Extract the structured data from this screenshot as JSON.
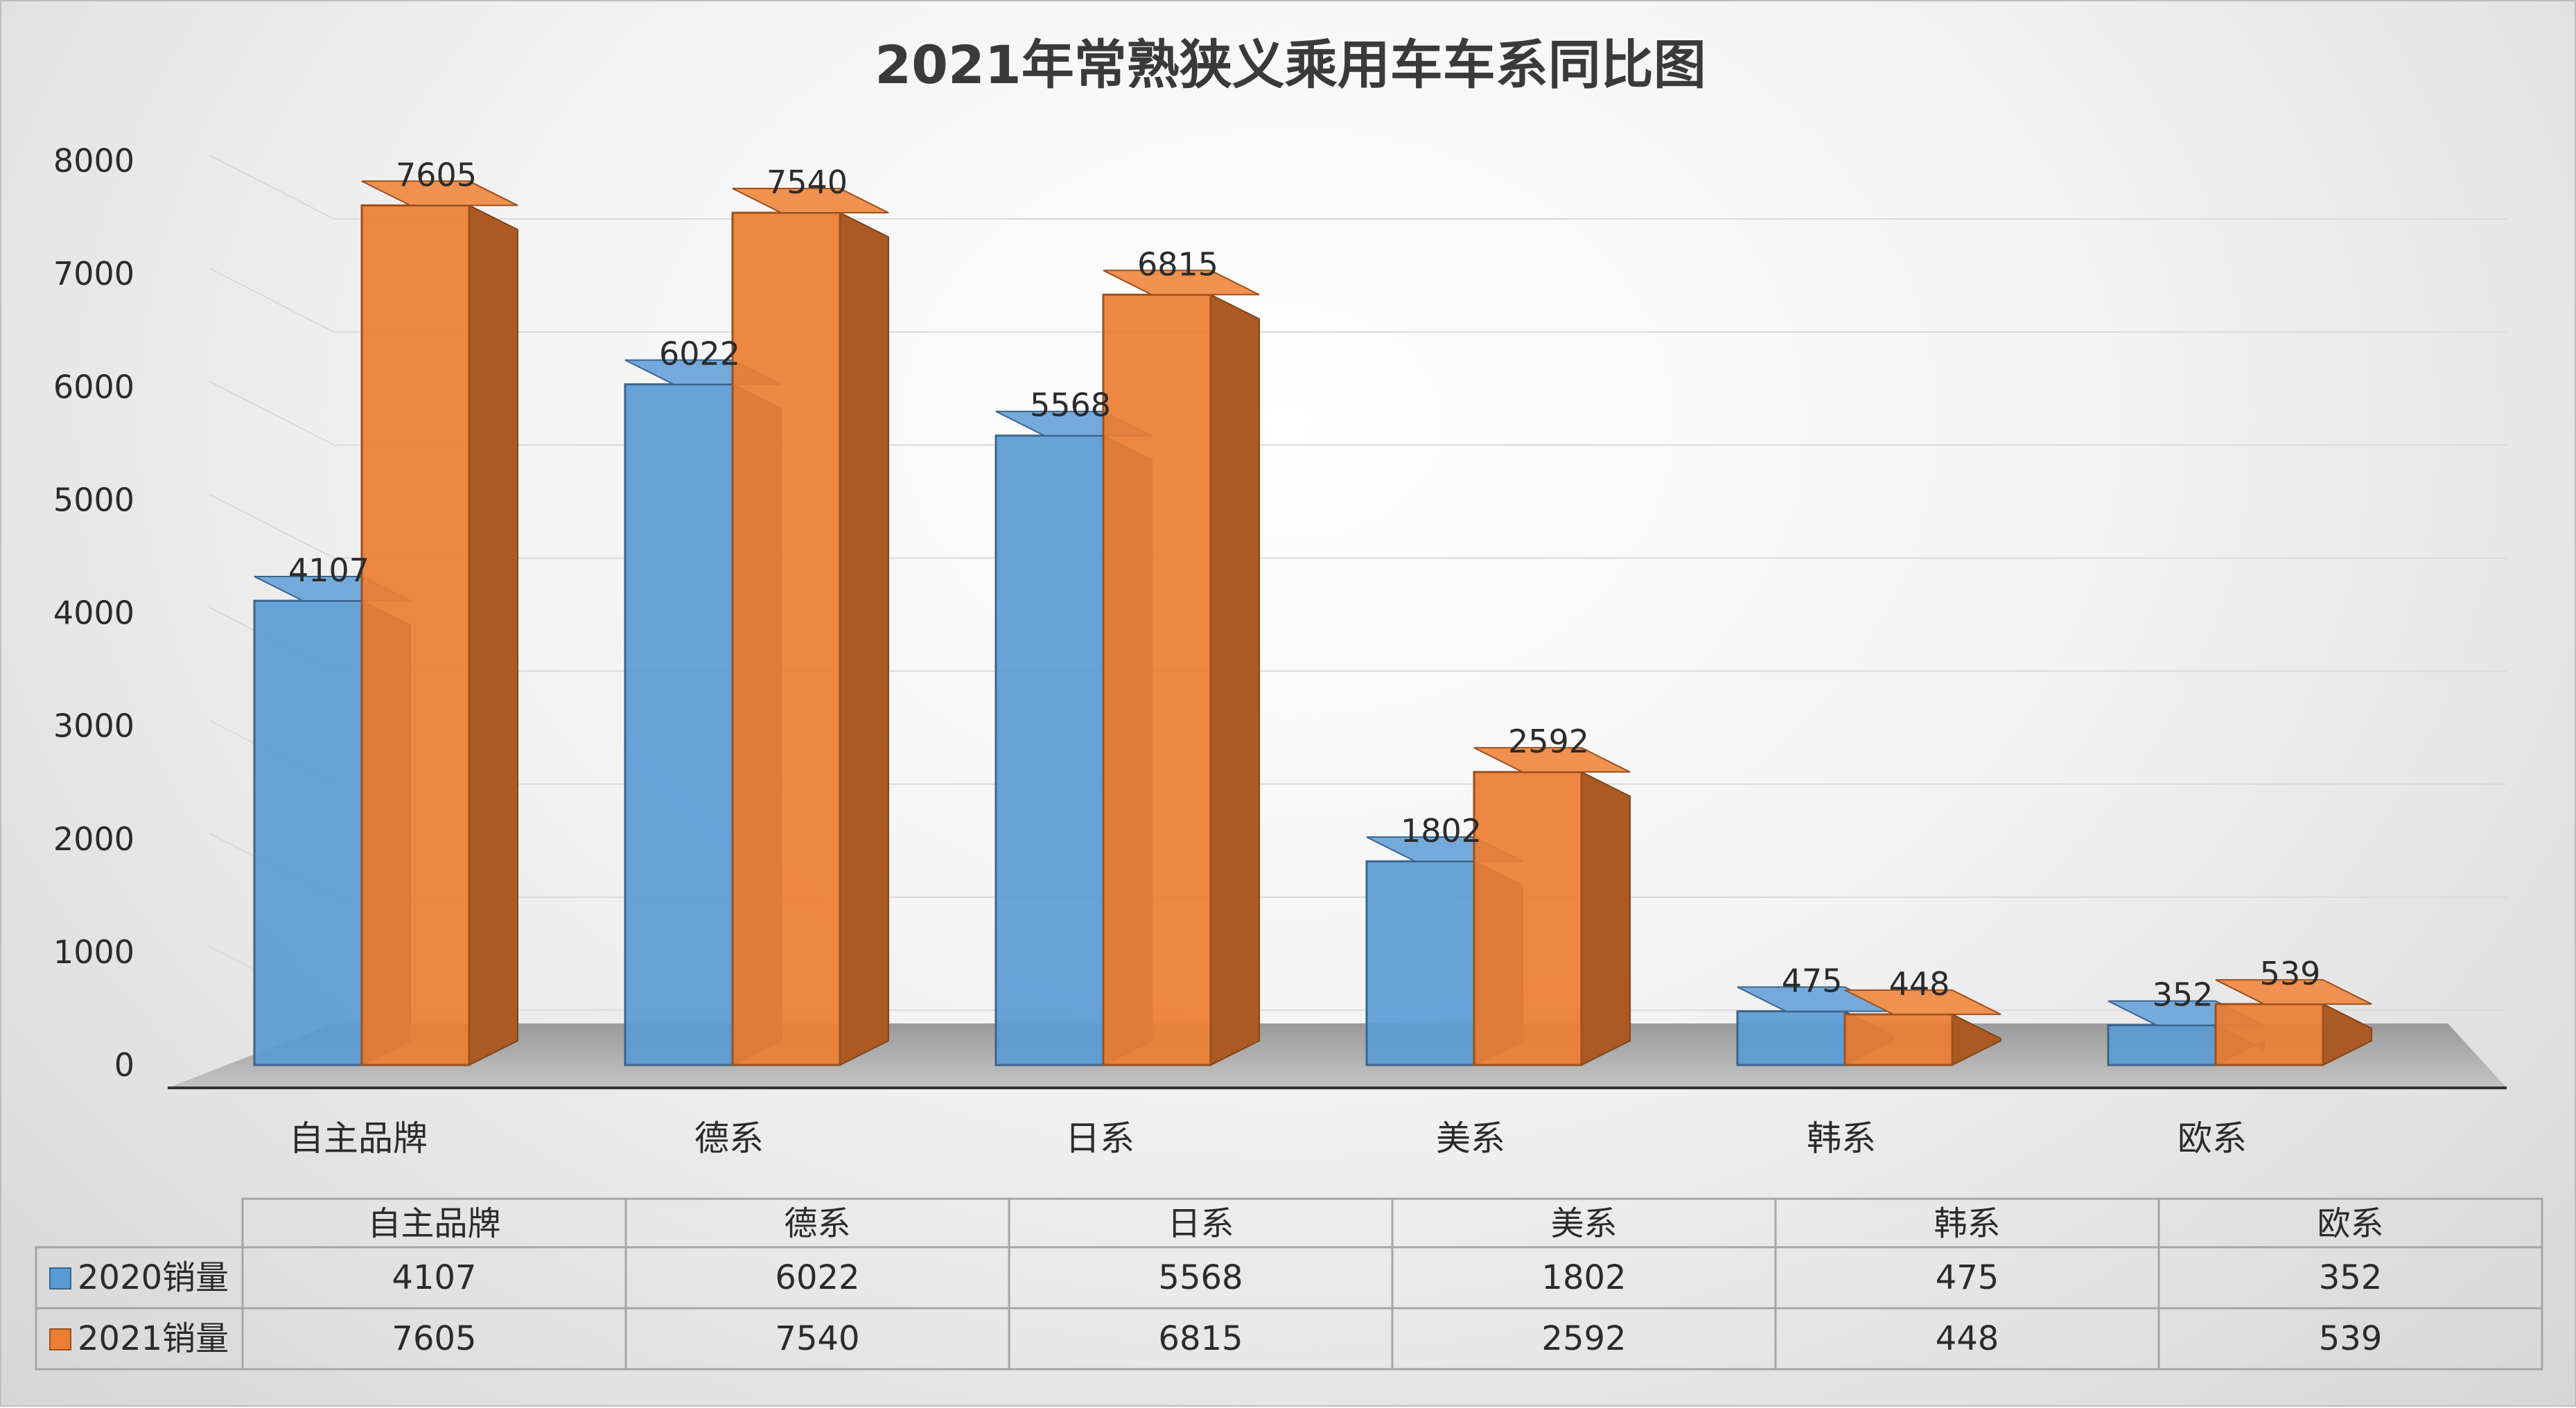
{
  "chart_data": {
    "type": "bar",
    "title": "2021年常熟狭义乘用车车系同比图",
    "categories": [
      "自主品牌",
      "德系",
      "日系",
      "美系",
      "韩系",
      "欧系"
    ],
    "series": [
      {
        "name": "2020销量",
        "values": [
          4107,
          6022,
          5568,
          1802,
          475,
          352
        ],
        "color": "#5b9bd5"
      },
      {
        "name": "2021销量",
        "values": [
          7605,
          7540,
          6815,
          2592,
          448,
          539
        ],
        "color": "#ed7d31"
      }
    ],
    "ylim": [
      0,
      8000
    ],
    "yticks": [
      "0",
      "1000",
      "2000",
      "3000",
      "4000",
      "5000",
      "6000",
      "7000",
      "8000"
    ],
    "grid": true,
    "legend": "data-table",
    "style": "3d-clustered-column"
  }
}
